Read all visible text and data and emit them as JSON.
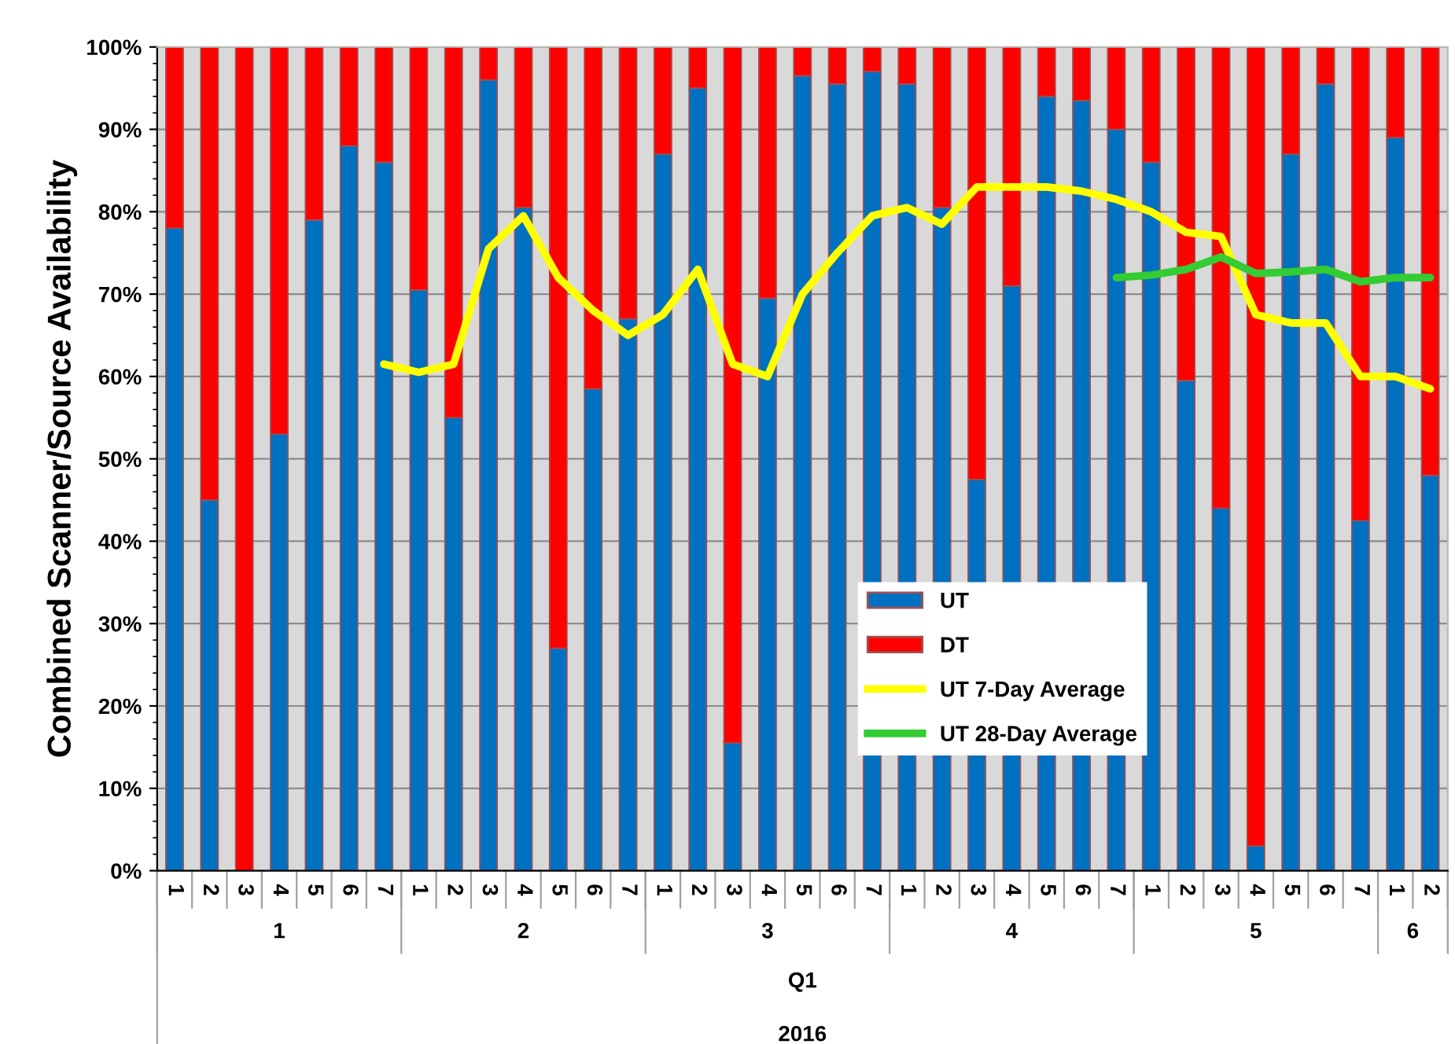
{
  "chart_data": {
    "type": "bar",
    "stacked": true,
    "ylabel": "Combined Scanner/Source Availability",
    "categories": [
      "1",
      "2",
      "3",
      "4",
      "5",
      "6",
      "7",
      "1",
      "2",
      "3",
      "4",
      "5",
      "6",
      "7",
      "1",
      "2",
      "3",
      "4",
      "5",
      "6",
      "7",
      "1",
      "2",
      "3",
      "4",
      "5",
      "6",
      "7",
      "1",
      "2",
      "3",
      "4",
      "5",
      "6",
      "7",
      "1",
      "2"
    ],
    "annotations": [
      "1",
      "2",
      "3",
      "4",
      "5",
      "6",
      "Q1",
      "2016"
    ],
    "series": [
      {
        "name": "UT",
        "color": "#0070c0",
        "values": [
          78,
          45,
          0,
          53,
          79,
          88,
          86,
          70.5,
          55,
          96,
          80.5,
          27,
          58.5,
          67,
          87,
          95,
          15.5,
          69.5,
          96.5,
          95.5,
          97,
          95.5,
          80.5,
          47.5,
          71,
          94,
          93.5,
          90,
          86,
          59.5,
          44,
          3,
          87,
          95.5,
          42.5,
          89,
          48
        ]
      },
      {
        "name": "DT",
        "color": "#ff0000",
        "values": [
          22,
          55,
          100,
          47,
          21,
          12,
          14,
          29.5,
          45,
          4,
          19.5,
          73,
          41.5,
          33,
          13,
          5,
          84.5,
          30.5,
          3.5,
          4.5,
          3,
          4.5,
          19.5,
          52.5,
          29,
          6,
          6.5,
          10,
          14,
          40.5,
          56,
          97,
          13,
          4.5,
          57.5,
          11,
          52
        ]
      },
      {
        "name": "UT 7-Day Average",
        "type": "line",
        "color": "#ffff00",
        "values": [
          null,
          null,
          null,
          null,
          null,
          null,
          61.5,
          60.5,
          61.5,
          75.5,
          79.5,
          72,
          68,
          65,
          67.5,
          73,
          61.5,
          60,
          70,
          75,
          79.5,
          80.5,
          78.5,
          83,
          83,
          83,
          82.5,
          81.5,
          80,
          77.5,
          77,
          67.5,
          66.5,
          66.5,
          60,
          60,
          58.5
        ]
      },
      {
        "name": "UT 28-Day Average",
        "type": "line",
        "color": "#33cc33",
        "values": [
          null,
          null,
          null,
          null,
          null,
          null,
          null,
          null,
          null,
          null,
          null,
          null,
          null,
          null,
          null,
          null,
          null,
          null,
          null,
          null,
          null,
          null,
          null,
          null,
          null,
          null,
          null,
          72,
          72.3,
          73,
          74.5,
          72.5,
          72.7,
          73,
          71.5,
          72,
          72
        ]
      }
    ],
    "ylim": [
      0,
      100
    ],
    "yticks": [
      {
        "value": 0,
        "label": "0%"
      },
      {
        "value": 10,
        "label": "10%"
      },
      {
        "value": 20,
        "label": "20%"
      },
      {
        "value": 30,
        "label": "30%"
      },
      {
        "value": 40,
        "label": "40%"
      },
      {
        "value": 50,
        "label": "50%"
      },
      {
        "value": 60,
        "label": "60%"
      },
      {
        "value": 70,
        "label": "70%"
      },
      {
        "value": 80,
        "label": "80%"
      },
      {
        "value": 90,
        "label": "90%"
      },
      {
        "value": 100,
        "label": "100%"
      }
    ],
    "grid": "y",
    "legend": "bottom"
  }
}
